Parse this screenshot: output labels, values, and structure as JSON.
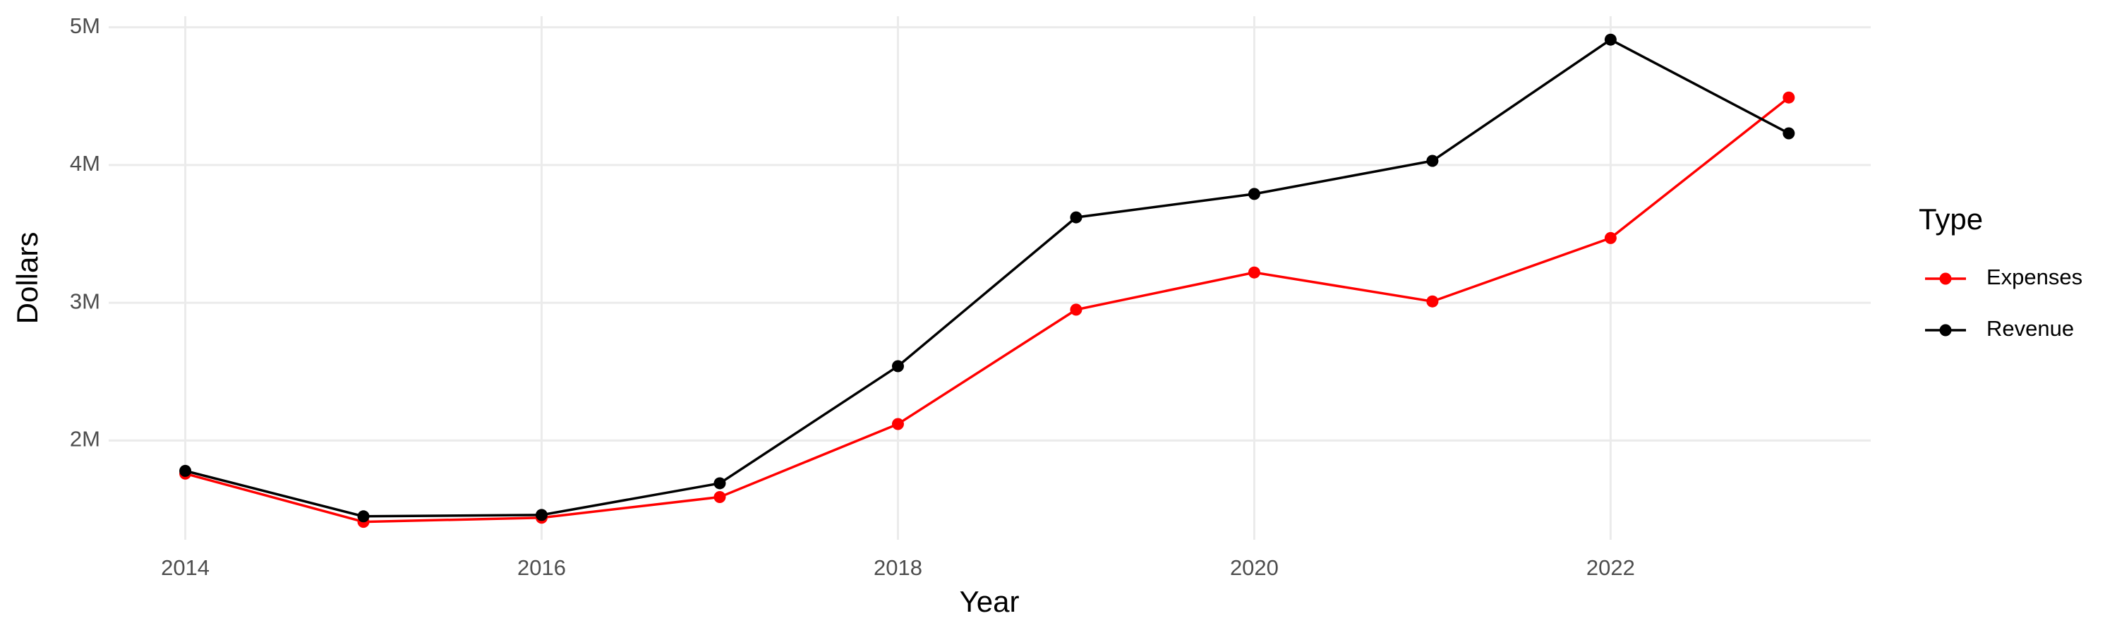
{
  "chart_data": {
    "type": "line",
    "x_label": "Year",
    "y_label": "Dollars",
    "legend_title": "Type",
    "x": [
      2014,
      2015,
      2016,
      2017,
      2018,
      2019,
      2020,
      2021,
      2022,
      2023
    ],
    "series": [
      {
        "name": "Expenses",
        "color": "#ff0000",
        "values": [
          1760000,
          1410000,
          1440000,
          1590000,
          2120000,
          2950000,
          3220000,
          3010000,
          3470000,
          4490000
        ]
      },
      {
        "name": "Revenue",
        "color": "#000000",
        "values": [
          1780000,
          1450000,
          1460000,
          1690000,
          2540000,
          3620000,
          3790000,
          4030000,
          4910000,
          4230000
        ]
      }
    ],
    "xlim": [
      2013.57,
      2023.46
    ],
    "xticks": [
      2014,
      2016,
      2018,
      2020,
      2022
    ],
    "ylim": [
      1280000,
      5080000
    ],
    "yticks": [
      {
        "value": 2000000,
        "label": "2M"
      },
      {
        "value": 3000000,
        "label": "3M"
      },
      {
        "value": 4000000,
        "label": "4M"
      },
      {
        "value": 5000000,
        "label": "5M"
      }
    ],
    "grid": true,
    "legend": "right"
  }
}
